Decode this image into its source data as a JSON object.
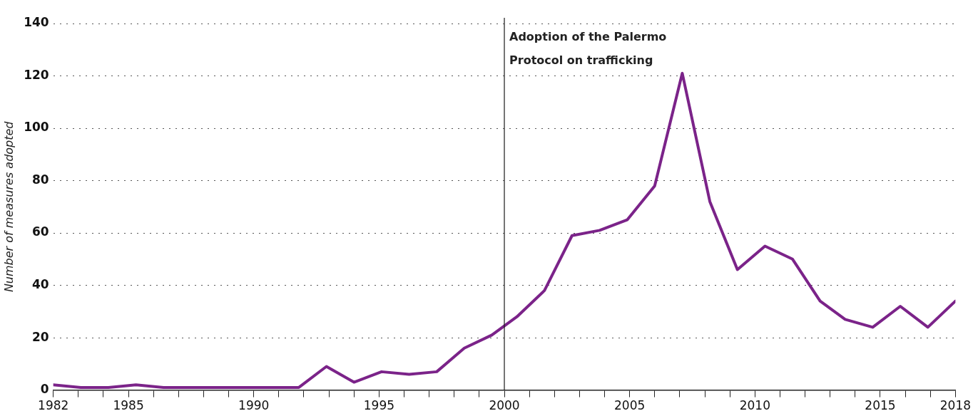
{
  "chart_data": {
    "type": "line",
    "ylabel": "Number of measures adopted",
    "x": [
      1982,
      1983.1,
      1984.2,
      1985.3,
      1986.4,
      1987.5,
      1988.5,
      1989.6,
      1990.7,
      1991.8,
      1992.9,
      1994,
      1995.1,
      1996.2,
      1997.3,
      1998.4,
      1999.5,
      2000.5,
      2001.6,
      2002.7,
      2003.8,
      2004.9,
      2006,
      2007.1,
      2008.2,
      2009.3,
      2010.4,
      2011.5,
      2012.6,
      2013.6,
      2014.7,
      2015.8,
      2016.9,
      2018
    ],
    "series": [
      {
        "color": "#7b2389",
        "values": [
          2,
          1,
          1,
          2,
          1,
          1,
          1,
          1,
          1,
          1,
          9,
          3,
          7,
          6,
          7,
          16,
          21,
          28,
          38,
          59,
          61,
          65,
          78,
          121,
          72,
          46,
          55,
          50,
          34,
          27,
          24,
          32,
          24,
          34
        ]
      }
    ],
    "xlim": [
      1982,
      2018
    ],
    "xticks": [
      1982,
      {
        "value": 1983,
        "label": null
      },
      {
        "value": 1984,
        "label": null
      },
      1985,
      {
        "value": 1986,
        "label": null
      },
      {
        "value": 1987,
        "label": null
      },
      {
        "value": 1988,
        "label": null
      },
      {
        "value": 1989,
        "label": null
      },
      1990,
      {
        "value": 1991,
        "label": null
      },
      {
        "value": 1992,
        "label": null
      },
      {
        "value": 1993,
        "label": null
      },
      {
        "value": 1994,
        "label": null
      },
      1995,
      {
        "value": 1996,
        "label": null
      },
      {
        "value": 1997,
        "label": null
      },
      {
        "value": 1998,
        "label": null
      },
      {
        "value": 1999,
        "label": null
      },
      2000,
      {
        "value": 2001,
        "label": null
      },
      {
        "value": 2002,
        "label": null
      },
      {
        "value": 2003,
        "label": null
      },
      {
        "value": 2004,
        "label": null
      },
      2005,
      {
        "value": 2006,
        "label": null
      },
      {
        "value": 2007,
        "label": null
      },
      {
        "value": 2008,
        "label": null
      },
      {
        "value": 2009,
        "label": null
      },
      2010,
      {
        "value": 2011,
        "label": null
      },
      {
        "value": 2012,
        "label": null
      },
      {
        "value": 2013,
        "label": null
      },
      {
        "value": 2014,
        "label": null
      },
      2015,
      {
        "value": 2016,
        "label": null
      },
      {
        "value": 2017,
        "label": null
      },
      2018
    ],
    "ylim": [
      0,
      140
    ],
    "yticks": [
      0,
      20,
      40,
      60,
      80,
      100,
      120,
      140
    ],
    "grid": "y",
    "legend": false,
    "marker": "none",
    "line_style": "solid",
    "ref_lines": [
      {
        "axis": "x",
        "value": 2000,
        "label": "Adoption of the Palermo Protocol on trafficking",
        "color": "#1a1a1a"
      }
    ]
  }
}
